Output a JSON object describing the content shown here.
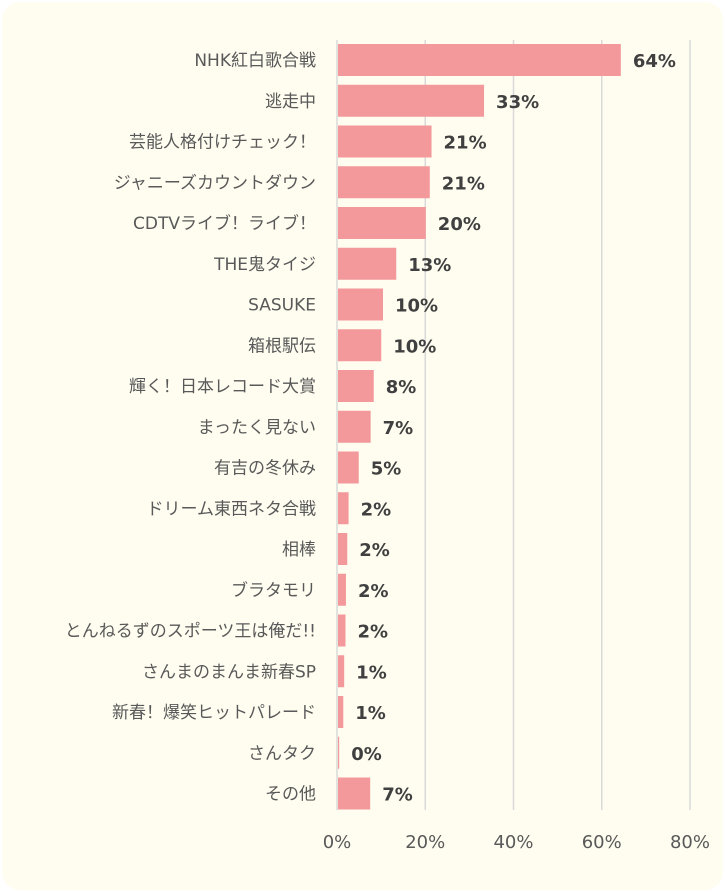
{
  "chart_data": {
    "type": "bar",
    "orientation": "horizontal",
    "categories": [
      "NHK紅白歌合戦",
      "逃走中",
      "芸能人格付けチェック！",
      "ジャニーズカウントダウン",
      "CDTVライブ！ライブ！",
      "THE鬼タイジ",
      "SASUKE",
      "箱根駅伝",
      "輝く！日本レコード大賞",
      "まったく見ない",
      "有吉の冬休み",
      "ドリーム東西ネタ合戦",
      "相棒",
      "ブラタモリ",
      "とんねるずのスポーツ王は俺だ!!",
      "さんまのまんま新春SP",
      "新春！爆笑ヒットパレード",
      "さんタク",
      "その他"
    ],
    "values": [
      64.1,
      33.1,
      21.2,
      20.8,
      19.9,
      13.2,
      10.2,
      9.8,
      8.1,
      7.4,
      4.7,
      2.4,
      2.1,
      1.8,
      1.7,
      1.4,
      1.2,
      0.2,
      7.3
    ],
    "value_labels": [
      "64%",
      "33%",
      "21%",
      "21%",
      "20%",
      "13%",
      "10%",
      "10%",
      "8%",
      "7%",
      "5%",
      "2%",
      "2%",
      "2%",
      "2%",
      "1%",
      "1%",
      "0%",
      "7%"
    ],
    "xlim": [
      0,
      80
    ],
    "x_ticks": [
      0,
      20,
      40,
      60,
      80
    ],
    "x_tick_labels": [
      "0%",
      "20%",
      "40%",
      "60%",
      "80%"
    ],
    "grid": true,
    "legend": "none",
    "title": "",
    "xlabel": "",
    "ylabel": "",
    "colors": {
      "bar": "#f4999b",
      "background": "#fffdf0",
      "grid": "#d9d9d9",
      "category_text": "#595959",
      "value_text": "#404040"
    }
  }
}
